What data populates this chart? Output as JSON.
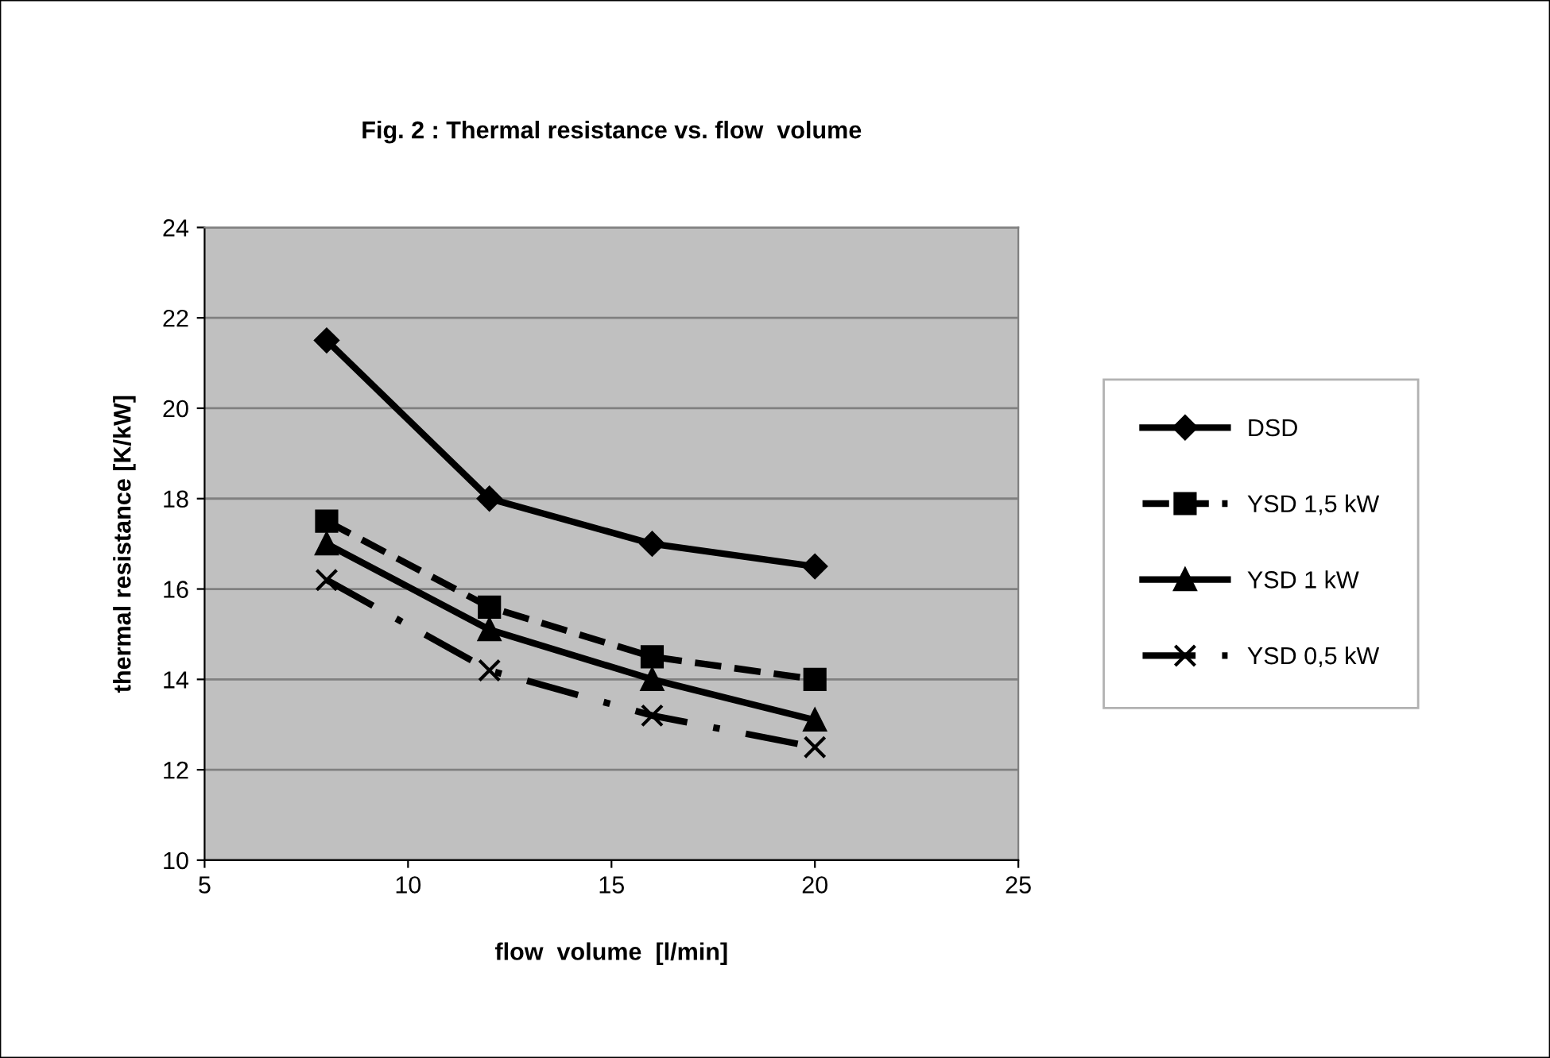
{
  "chart_data": {
    "type": "line",
    "title": "Fig. 2 : Thermal resistance vs. flow  volume",
    "xlabel": "flow  volume  [l/min]",
    "ylabel": "thermal resistance [K/kW]",
    "x": [
      8,
      12,
      16,
      20
    ],
    "series": [
      {
        "name": "DSD",
        "color": "#000000",
        "values": [
          21.5,
          18,
          17,
          16.5
        ],
        "marker": "diamond",
        "line_style": "solid"
      },
      {
        "name": "YSD 1,5 kW",
        "color": "#000000",
        "values": [
          17.5,
          15.6,
          14.5,
          14
        ],
        "marker": "square",
        "line_style": "dashed"
      },
      {
        "name": "YSD 1 kW",
        "color": "#000000",
        "values": [
          17,
          15.1,
          14,
          13.1
        ],
        "marker": "triangle",
        "line_style": "solid"
      },
      {
        "name": "YSD 0,5 kW",
        "color": "#000000",
        "values": [
          16.2,
          14.2,
          13.2,
          12.5
        ],
        "marker": "cross",
        "line_style": "dashdot"
      }
    ],
    "xlim": [
      5,
      25
    ],
    "xticks": [
      5,
      10,
      15,
      20,
      25
    ],
    "ylim": [
      10,
      24
    ],
    "yticks": [
      10,
      12,
      14,
      16,
      18,
      20,
      22,
      24
    ],
    "grid": "y",
    "legend": "right"
  }
}
